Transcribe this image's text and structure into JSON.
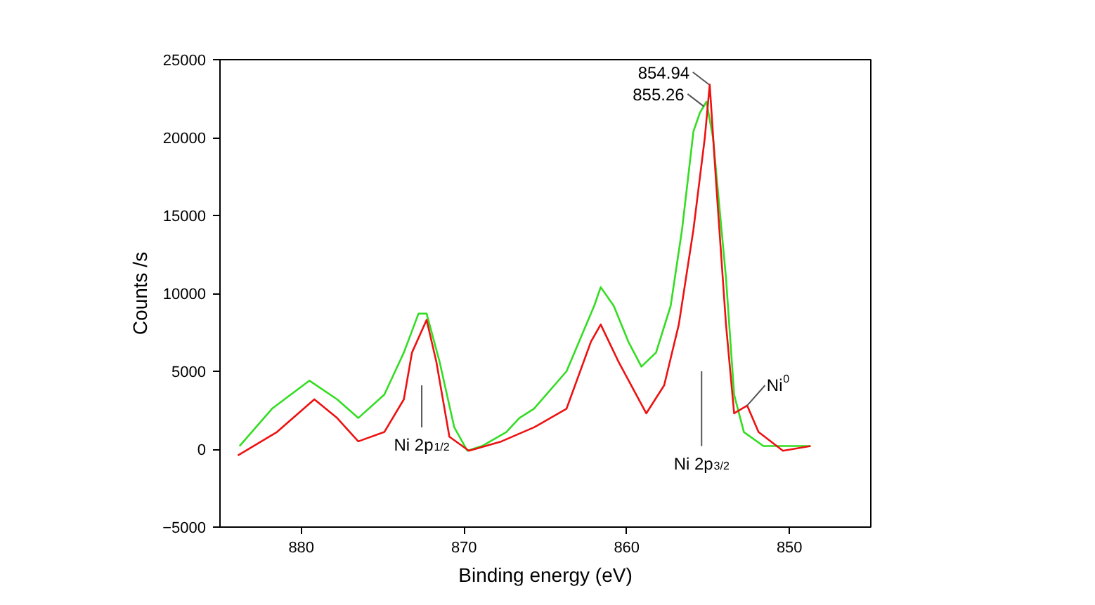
{
  "chart_data": {
    "type": "line",
    "xlabel": "Binding energy (eV)",
    "ylabel": "Counts /s",
    "xlim": [
      885,
      845
    ],
    "ylim": [
      -5000,
      25000
    ],
    "xticks": [
      880,
      870,
      860,
      850
    ],
    "yticks": [
      -5000,
      0,
      5000,
      10000,
      15000,
      20000,
      25000
    ],
    "grid": false,
    "marker": "none",
    "line_style": "solid",
    "series": [
      {
        "color": "#33dd22",
        "x": [
          883.8,
          881.8,
          879.5,
          877.8,
          876.5,
          874.9,
          873.7,
          872.8,
          872.3,
          871.5,
          870.6,
          869.8,
          868.9,
          867.4,
          866.6,
          865.7,
          863.7,
          862.0,
          861.6,
          860.8,
          859.9,
          859.1,
          858.2,
          857.3,
          856.6,
          855.9,
          855.5,
          855.1,
          854.7,
          853.9,
          853.4,
          852.8,
          851.6,
          848.7
        ],
        "values": [
          200,
          2600,
          4400,
          3200,
          2000,
          3500,
          6200,
          8700,
          8700,
          5600,
          1400,
          -100,
          200,
          1100,
          2000,
          2600,
          5000,
          9200,
          10400,
          9200,
          6900,
          5300,
          6200,
          9200,
          14100,
          20400,
          21600,
          22300,
          20000,
          11000,
          3500,
          1100,
          200,
          200
        ]
      },
      {
        "color": "#ee1111",
        "x": [
          883.9,
          881.5,
          879.2,
          877.8,
          876.5,
          874.9,
          873.7,
          873.2,
          872.3,
          871.7,
          870.9,
          869.7,
          867.7,
          865.7,
          863.7,
          862.2,
          861.6,
          860.5,
          858.8,
          857.7,
          856.8,
          855.9,
          855.2,
          854.9,
          854.5,
          853.9,
          853.4,
          852.6,
          851.9,
          850.4,
          848.7
        ],
        "values": [
          -400,
          1100,
          3200,
          2000,
          500,
          1100,
          3200,
          6200,
          8300,
          5600,
          800,
          -100,
          500,
          1400,
          2600,
          6900,
          8000,
          5600,
          2300,
          4100,
          8000,
          14100,
          20000,
          23400,
          17000,
          8000,
          2300,
          2800,
          1100,
          -100,
          200
        ]
      }
    ],
    "annotations": [
      {
        "text": "854.94",
        "x": 854.94,
        "y": 23400
      },
      {
        "text": "855.26",
        "x": 855.26,
        "y": 22000
      },
      "Ni 2p$_{1/2}$",
      "Ni 2p$_{3/2}$",
      {
        "text": "Ni$^{0}$",
        "x": 852.6,
        "y": 2800
      }
    ]
  }
}
